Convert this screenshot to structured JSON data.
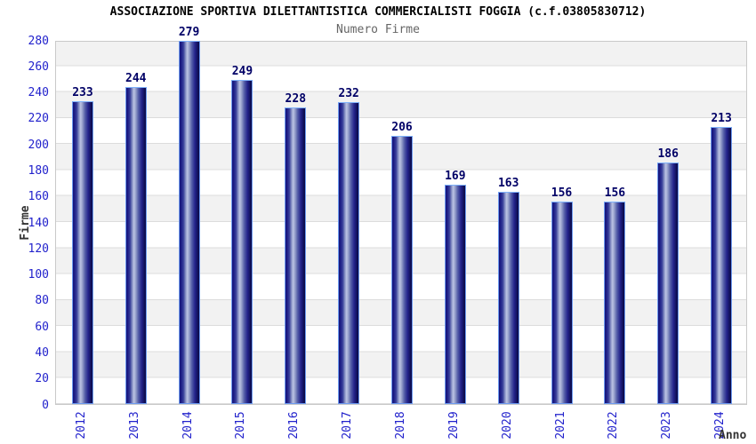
{
  "header": {
    "title": "ASSOCIAZIONE SPORTIVA DILETTANTISTICA COMMERCIALISTI FOGGIA (c.f.03805830712)",
    "subtitle": "Numero Firme"
  },
  "chart_data": {
    "type": "bar",
    "title": "Numero Firme",
    "categories": [
      "2012",
      "2013",
      "2014",
      "2015",
      "2016",
      "2017",
      "2018",
      "2019",
      "2020",
      "2021",
      "2022",
      "2023",
      "2024"
    ],
    "values": [
      233,
      244,
      279,
      249,
      228,
      232,
      206,
      169,
      163,
      156,
      156,
      186,
      213
    ],
    "xlabel": "Anno",
    "ylabel": "Firme",
    "ylim": [
      0,
      280
    ],
    "ytick_step": 20,
    "grid": true,
    "legend_position": "none",
    "colors": {
      "title_color": "#000000",
      "subtitle_color": "#666666",
      "tick_label": "#2222cc",
      "value_label": "#000066",
      "axis_title": "#333333",
      "bar_highlight": "#bcc4e4",
      "bar_end": "#0c0c50",
      "bar_border": "#6e9bf0",
      "band_gray": "#f2f2f2",
      "gridline": "#dcdcdc",
      "plot_border": "#c9c9c9"
    }
  }
}
